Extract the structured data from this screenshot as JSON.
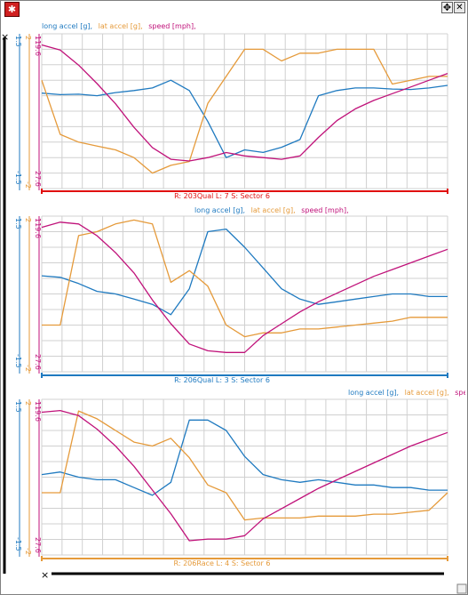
{
  "colors": {
    "long_accel": "#1f7ac0",
    "lat_accel": "#e59a3a",
    "speed": "#c0127a",
    "sector_red": "#e01010",
    "sector_blue": "#1f7ac0",
    "sector_orange": "#e59a3a",
    "grid": "#d0d0d0"
  },
  "icons": {
    "app": "app-logo-icon",
    "move": "move-icon",
    "close": "close-icon",
    "zoom_reset": "zoom-reset-icon",
    "resize": "resize-grip-icon"
  },
  "panes": [
    {
      "legend": [
        "long accel [g],",
        "lat accel [g],",
        "speed [mph],"
      ],
      "sector_label": "R: 203Qual  L: 7  S: Sector 6",
      "axis_labels": {
        "long_top": "1.5",
        "long_bottom": "-1.5",
        "lat_top": "2",
        "lat_bottom": "-2",
        "speed_top": "119.6",
        "speed_bottom": "27.6"
      },
      "chart_data": {
        "type": "line",
        "series": [
          {
            "name": "long accel [g]",
            "values": [
              0.35,
              0.32,
              0.33,
              0.3,
              0.36,
              0.4,
              0.45,
              0.6,
              0.4,
              -0.2,
              -0.9,
              -0.75,
              -0.8,
              -0.7,
              -0.55,
              0.3,
              0.4,
              0.45,
              0.45,
              0.43,
              0.42,
              0.45,
              0.5
            ]
          },
          {
            "name": "lat accel [g]",
            "values": [
              0.8,
              -0.6,
              -0.8,
              -0.9,
              -1.0,
              -1.2,
              -1.6,
              -1.4,
              -1.3,
              0.2,
              0.9,
              1.6,
              1.6,
              1.3,
              1.5,
              1.5,
              1.6,
              1.6,
              1.6,
              0.7,
              0.8,
              0.9,
              0.9
            ]
          },
          {
            "name": "speed [mph]",
            "values": [
              113,
              110,
              101,
              90,
              78,
              64,
              52,
              45,
              44,
              46,
              49,
              47,
              46,
              45,
              47,
              58,
              68,
              75,
              80,
              84,
              88,
              92,
              96
            ]
          }
        ]
      }
    },
    {
      "legend": [
        "long accel [g],",
        "lat accel [g],",
        "speed [mph],"
      ],
      "sector_label": "R: 206Qual  L: 3  S: Sector 6",
      "axis_labels": {
        "long_top": "1.5",
        "long_bottom": "-1.5",
        "lat_top": "2",
        "lat_bottom": "-2",
        "speed_top": "119.6",
        "speed_bottom": "27.6"
      },
      "chart_data": {
        "type": "line",
        "series": [
          {
            "name": "long accel [g]",
            "values": [
              0.35,
              0.32,
              0.2,
              0.05,
              0.0,
              -0.1,
              -0.2,
              -0.4,
              0.1,
              1.2,
              1.25,
              0.9,
              0.5,
              0.1,
              -0.1,
              -0.2,
              -0.15,
              -0.1,
              -0.05,
              0.0,
              0.0,
              -0.05,
              -0.05
            ]
          },
          {
            "name": "lat accel [g]",
            "values": [
              -0.8,
              -0.8,
              1.5,
              1.6,
              1.8,
              1.9,
              1.8,
              0.3,
              0.6,
              0.2,
              -0.8,
              -1.1,
              -1.0,
              -1.0,
              -0.9,
              -0.9,
              -0.85,
              -0.8,
              -0.75,
              -0.7,
              -0.6,
              -0.6,
              -0.6
            ]
          },
          {
            "name": "speed [mph]",
            "values": [
              113,
              116,
              115,
              108,
              98,
              86,
              70,
              56,
              44,
              40,
              39,
              39,
              49,
              56,
              63,
              69,
              74,
              79,
              84,
              88,
              92,
              96,
              100
            ]
          }
        ]
      }
    },
    {
      "legend": [
        "long accel [g],",
        "lat accel [g],",
        "speed [mph],"
      ],
      "sector_label": "R: 206Race  L: 4  S: Sector 6",
      "axis_labels": {
        "long_top": "1.5",
        "long_bottom": "-1.5",
        "lat_top": "2",
        "lat_bottom": "-2",
        "speed_top": "119.6",
        "speed_bottom": "27.6"
      },
      "chart_data": {
        "type": "line",
        "series": [
          {
            "name": "long accel [g]",
            "values": [
              0.05,
              0.1,
              0.0,
              -0.05,
              -0.05,
              -0.2,
              -0.35,
              -0.1,
              1.1,
              1.1,
              0.9,
              0.4,
              0.05,
              -0.05,
              -0.1,
              -0.05,
              -0.1,
              -0.15,
              -0.15,
              -0.2,
              -0.2,
              -0.25,
              -0.25
            ]
          },
          {
            "name": "lat accel [g]",
            "values": [
              -0.4,
              -0.4,
              1.7,
              1.5,
              1.2,
              0.9,
              0.8,
              1.0,
              0.5,
              -0.2,
              -0.4,
              -1.1,
              -1.05,
              -1.05,
              -1.05,
              -1.0,
              -1.0,
              -1.0,
              -0.95,
              -0.95,
              -0.9,
              -0.85,
              -0.4
            ]
          },
          {
            "name": "speed [mph]",
            "values": [
              112,
              113,
              110,
              102,
              92,
              80,
              66,
              52,
              36,
              37,
              37,
              39,
              49,
              55,
              61,
              67,
              72,
              77,
              82,
              87,
              92,
              96,
              100
            ]
          }
        ]
      }
    }
  ]
}
